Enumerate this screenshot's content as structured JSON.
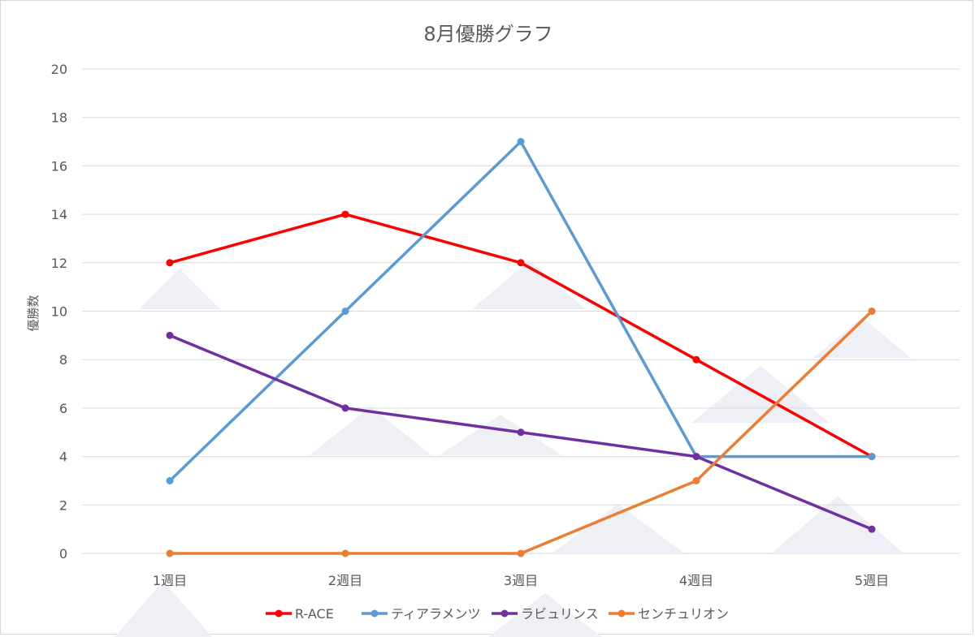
{
  "chart_data": {
    "type": "line",
    "title": "8月優勝グラフ",
    "xlabel": "",
    "ylabel": "優勝数",
    "categories": [
      "1週目",
      "2週目",
      "3週目",
      "4週目",
      "5週目"
    ],
    "ylim": [
      0,
      20
    ],
    "yticks": [
      0,
      2,
      4,
      6,
      8,
      10,
      12,
      14,
      16,
      18,
      20
    ],
    "grid": true,
    "legend_position": "bottom",
    "series": [
      {
        "name": "R-ACE",
        "color": "#ff0000",
        "values": [
          12,
          14,
          12,
          8,
          4
        ]
      },
      {
        "name": "ティアラメンツ",
        "color": "#5b9bd5",
        "values": [
          3,
          10,
          17,
          4,
          4
        ]
      },
      {
        "name": "ラビュリンス",
        "color": "#7030a0",
        "values": [
          9,
          6,
          5,
          4,
          1
        ]
      },
      {
        "name": "センチュリオン",
        "color": "#ed7d31",
        "values": [
          0,
          0,
          0,
          3,
          10
        ]
      }
    ]
  }
}
